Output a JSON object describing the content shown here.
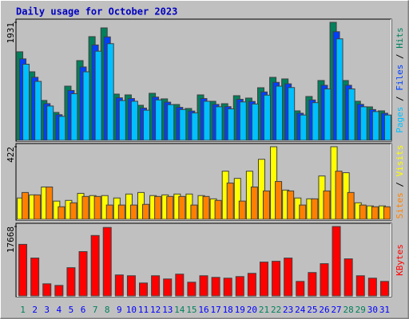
{
  "chart_data": {
    "type": "bar",
    "title": "Daily usage for October 2023",
    "categories": [
      "1",
      "2",
      "3",
      "4",
      "5",
      "6",
      "7",
      "8",
      "9",
      "10",
      "11",
      "12",
      "13",
      "14",
      "15",
      "16",
      "17",
      "18",
      "19",
      "20",
      "21",
      "22",
      "23",
      "24",
      "25",
      "26",
      "27",
      "28",
      "29",
      "30",
      "31"
    ],
    "category_colors": [
      "#00805C",
      "#0000FF",
      "#0000FF",
      "#0000FF",
      "#0000FF",
      "#0000FF",
      "#00805C",
      "#00805C",
      "#0000FF",
      "#0000FF",
      "#0000FF",
      "#0000FF",
      "#0000FF",
      "#00805C",
      "#00805C",
      "#0000FF",
      "#0000FF",
      "#0000FF",
      "#0000FF",
      "#0000FF",
      "#00805C",
      "#00805C",
      "#0000FF",
      "#0000FF",
      "#0000FF",
      "#0000FF",
      "#0000FF",
      "#00805C",
      "#00805C",
      "#0000FF",
      "#0000FF"
    ],
    "legend_separator": " / ",
    "panels": [
      {
        "type": "bar",
        "ylim": [
          0,
          1931
        ],
        "yticks": [
          1931
        ],
        "series": [
          {
            "name": "Hits",
            "color": "#00805C",
            "values": [
              1449,
              1122,
              653,
              457,
              887,
              1305,
              1697,
              1840,
              757,
              744,
              574,
              770,
              679,
              587,
              522,
              744,
              639,
              600,
              731,
              692,
              861,
              1031,
              1005,
              483,
              718,
              979,
              1931,
              979,
              640,
              548,
              483
            ]
          },
          {
            "name": "Files",
            "color": "#0040FF",
            "values": [
              1333,
              1032,
              601,
              420,
              816,
              1201,
              1561,
              1693,
              696,
              684,
              528,
              708,
              625,
              540,
              480,
              684,
              588,
              552,
              672,
              637,
              792,
              949,
              925,
              444,
              661,
              901,
              1777,
              901,
              589,
              504,
              444
            ]
          },
          {
            "name": "Pages",
            "color": "#00C0FF",
            "values": [
              1246,
              965,
              562,
              393,
              763,
              1122,
              1459,
              1582,
              651,
              640,
              494,
              662,
              584,
              505,
              449,
              640,
              550,
              516,
              629,
              595,
              740,
              887,
              864,
              415,
              617,
              842,
              1661,
              842,
              550,
              471,
              415
            ]
          }
        ]
      },
      {
        "type": "bar",
        "ylim": [
          0,
          422
        ],
        "yticks": [
          422
        ],
        "series": [
          {
            "name": "Visits",
            "color": "#FFFF00",
            "values": [
              124,
              142,
              188,
              106,
              110,
              151,
              138,
              138,
              124,
              147,
              156,
              138,
              142,
              147,
              147,
              138,
              119,
              280,
              238,
              280,
              349,
              422,
              170,
              124,
              119,
              252,
              422,
              271,
              96,
              78,
              78
            ]
          },
          {
            "name": "Sites",
            "color": "#FF8000",
            "values": [
              156,
              142,
              188,
              73,
              96,
              133,
              133,
              83,
              83,
              83,
              87,
              133,
              133,
              133,
              83,
              133,
              110,
              211,
              106,
              188,
              165,
              220,
              165,
              83,
              119,
              165,
              280,
              156,
              83,
              73,
              73
            ]
          }
        ]
      },
      {
        "type": "bar",
        "ylim": [
          0,
          17668
        ],
        "yticks": [
          17668
        ],
        "series": [
          {
            "name": "KBytes",
            "color": "#FF0000",
            "values": [
              13120,
              9635,
              3075,
              2665,
              7175,
              11275,
              15375,
              17425,
              5330,
              5125,
              3280,
              5125,
              4305,
              5535,
              3485,
              5125,
              4715,
              4510,
              4920,
              5740,
              8610,
              8815,
              9635,
              3690,
              5945,
              8200,
              17668,
              9430,
              5125,
              4510,
              3690
            ]
          }
        ]
      }
    ]
  }
}
